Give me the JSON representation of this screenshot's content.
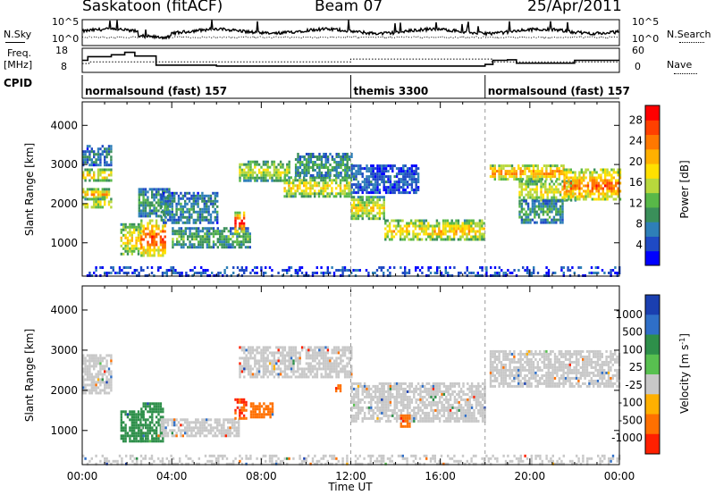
{
  "header": {
    "station": "Saskatoon (fitACF)",
    "beam": "Beam 07",
    "date": "25/Apr/2011"
  },
  "side_labels": {
    "nsky": "N.Sky",
    "nsearch": "N.Search",
    "freq_line1": "Freq.",
    "freq_line2": "[MHz]",
    "nave": "Nave",
    "cpid": "CPID"
  },
  "noise_axis": {
    "left_top": "10^5",
    "left_bottom": "10^0",
    "right_top": "10^5",
    "right_bottom": "10^0"
  },
  "freq_axis": {
    "left_top": "18",
    "left_bottom": "8",
    "right_top": "60",
    "right_bottom": "0"
  },
  "cpid_segments": [
    {
      "label": "normalsound (fast) 157",
      "start_hour": 0,
      "end_hour": 12
    },
    {
      "label": "themis 3300",
      "start_hour": 12,
      "end_hour": 18
    },
    {
      "label": "normalsound (fast) 157",
      "start_hour": 18,
      "end_hour": 24
    }
  ],
  "chart_data": [
    {
      "type": "line",
      "panel": "noise",
      "series": [
        {
          "name": "N.Sky",
          "style": "solid"
        },
        {
          "name": "N.Search",
          "style": "dotted"
        }
      ],
      "ylim_left": [
        "10^0",
        "10^5"
      ],
      "ylim_right": [
        "10^0",
        "10^5"
      ]
    },
    {
      "type": "line",
      "panel": "frequency",
      "series": [
        {
          "name": "Freq.",
          "style": "solid",
          "steps": [
            {
              "t": 0.0,
              "v": 13.0
            },
            {
              "t": 0.25,
              "v": 14.5
            },
            {
              "t": 1.3,
              "v": 15.3
            },
            {
              "t": 1.9,
              "v": 16.3
            },
            {
              "t": 2.35,
              "v": 14.8
            },
            {
              "t": 3.3,
              "v": 11.0
            },
            {
              "t": 6.0,
              "v": 10.6
            },
            {
              "t": 18.0,
              "v": 11.3
            },
            {
              "t": 18.35,
              "v": 13.0
            },
            {
              "t": 19.0,
              "v": 13.2
            },
            {
              "t": 19.4,
              "v": 11.8
            },
            {
              "t": 22.0,
              "v": 13.0
            },
            {
              "t": 24.0,
              "v": 13.0
            }
          ]
        },
        {
          "name": "Nave",
          "style": "dotted",
          "steps": [
            {
              "t": 0.0,
              "v": 22
            },
            {
              "t": 0.3,
              "v": 26
            },
            {
              "t": 12.0,
              "v": 33
            },
            {
              "t": 18.3,
              "v": 26
            },
            {
              "t": 24.0,
              "v": 26
            }
          ]
        }
      ],
      "ylim_left": [
        8,
        18
      ],
      "ylim_right": [
        0,
        60
      ]
    },
    {
      "type": "heatmap",
      "panel": "power",
      "title": "",
      "xlabel": "",
      "ylabel": "Slant Range [km]",
      "xlim": [
        0,
        24
      ],
      "ylim": [
        150,
        4600
      ],
      "yticks": [
        1000,
        2000,
        3000,
        4000
      ],
      "colorbar": {
        "label": "Power [dB]",
        "ticks": [
          "4",
          "8",
          "12",
          "16",
          "20",
          "24",
          "28"
        ],
        "colors": [
          "#0000ff",
          "#1f4ac4",
          "#2e7fb8",
          "#3a8f5a",
          "#58b848",
          "#b8d83c",
          "#ffe000",
          "#ffb000",
          "#ff7800",
          "#ff4000",
          "#ff0000"
        ]
      },
      "bands": [
        {
          "t0": 0.0,
          "t1": 1.3,
          "r0": 2600,
          "r1": 2900,
          "level": 0.58
        },
        {
          "t0": 0.0,
          "t1": 1.2,
          "r0": 2150,
          "r1": 2400,
          "level": 0.62
        },
        {
          "t0": 0.0,
          "t1": 1.3,
          "r0": 1900,
          "r1": 2150,
          "level": 0.5
        },
        {
          "t0": 0.0,
          "t1": 1.3,
          "r0": 3000,
          "r1": 3500,
          "level": 0.2
        },
        {
          "t0": 1.7,
          "t1": 2.6,
          "r0": 700,
          "r1": 1500,
          "level": 0.55
        },
        {
          "t0": 2.6,
          "t1": 3.7,
          "r0": 700,
          "r1": 1600,
          "level": 0.8
        },
        {
          "t0": 2.5,
          "t1": 3.9,
          "r0": 1700,
          "r1": 2400,
          "level": 0.3
        },
        {
          "t0": 3.5,
          "t1": 6.0,
          "r0": 1500,
          "r1": 2300,
          "level": 0.25
        },
        {
          "t0": 4.0,
          "t1": 7.5,
          "r0": 900,
          "r1": 1400,
          "level": 0.35
        },
        {
          "t0": 6.8,
          "t1": 7.2,
          "r0": 1300,
          "r1": 1800,
          "level": 0.85
        },
        {
          "t0": 7.0,
          "t1": 9.3,
          "r0": 2600,
          "r1": 3100,
          "level": 0.5
        },
        {
          "t0": 9.0,
          "t1": 12.0,
          "r0": 2200,
          "r1": 2700,
          "level": 0.55
        },
        {
          "t0": 9.5,
          "t1": 12.0,
          "r0": 2700,
          "r1": 3300,
          "level": 0.3
        },
        {
          "t0": 12.0,
          "t1": 13.5,
          "r0": 1600,
          "r1": 2200,
          "level": 0.55
        },
        {
          "t0": 13.5,
          "t1": 18.0,
          "r0": 1100,
          "r1": 1600,
          "level": 0.6
        },
        {
          "t0": 12.0,
          "t1": 15.0,
          "r0": 2300,
          "r1": 3000,
          "level": 0.15
        },
        {
          "t0": 18.2,
          "t1": 21.5,
          "r0": 2650,
          "r1": 3000,
          "level": 0.7
        },
        {
          "t0": 19.5,
          "t1": 22.0,
          "r0": 2100,
          "r1": 2600,
          "level": 0.55
        },
        {
          "t0": 21.5,
          "t1": 24.0,
          "r0": 2100,
          "r1": 2900,
          "level": 0.75
        },
        {
          "t0": 19.5,
          "t1": 21.5,
          "r0": 1500,
          "r1": 2100,
          "level": 0.3
        },
        {
          "t0": 0.0,
          "t1": 24.0,
          "r0": 150,
          "r1": 400,
          "level": 0.1
        }
      ]
    },
    {
      "type": "heatmap",
      "panel": "velocity",
      "title": "",
      "xlabel": "Time UT",
      "ylabel": "Slant Range [km]",
      "xlim": [
        0,
        24
      ],
      "ylim": [
        150,
        4600
      ],
      "xticks": [
        "00:00",
        "04:00",
        "08:00",
        "12:00",
        "16:00",
        "20:00",
        "00:00"
      ],
      "yticks": [
        1000,
        2000,
        3000,
        4000
      ],
      "colorbar": {
        "label": "Velocity [m s^-1]",
        "ticks": [
          "1000",
          "500",
          "100",
          "25",
          "-25",
          "-100",
          "-500",
          "-1000"
        ],
        "colors": [
          "#1a3fb0",
          "#2f6fc8",
          "#2e8f4a",
          "#58c050",
          "#c8c8c8",
          "#ffb000",
          "#ff7000",
          "#ff2000"
        ]
      },
      "ground_scatter_color": "#c8c8c8",
      "bands": [
        {
          "t0": 0.0,
          "t1": 1.3,
          "r0": 1900,
          "r1": 2900,
          "velocity": 0
        },
        {
          "t0": 1.7,
          "t1": 2.7,
          "r0": 700,
          "r1": 1500,
          "velocity": 150
        },
        {
          "t0": 2.6,
          "t1": 3.6,
          "r0": 700,
          "r1": 1700,
          "velocity": 200
        },
        {
          "t0": 3.5,
          "t1": 7.0,
          "r0": 850,
          "r1": 1300,
          "velocity": 0
        },
        {
          "t0": 6.8,
          "t1": 7.3,
          "r0": 1300,
          "r1": 1800,
          "velocity": -600
        },
        {
          "t0": 7.5,
          "t1": 8.5,
          "r0": 1300,
          "r1": 1700,
          "velocity": -300
        },
        {
          "t0": 11.3,
          "t1": 11.6,
          "r0": 1950,
          "r1": 2150,
          "velocity": -400
        },
        {
          "t0": 7.0,
          "t1": 12.0,
          "r0": 2300,
          "r1": 3100,
          "velocity": 0
        },
        {
          "t0": 12.0,
          "t1": 18.0,
          "r0": 1200,
          "r1": 2200,
          "velocity": 0
        },
        {
          "t0": 14.2,
          "t1": 14.6,
          "r0": 1100,
          "r1": 1400,
          "velocity": -400
        },
        {
          "t0": 18.2,
          "t1": 24.0,
          "r0": 2100,
          "r1": 3000,
          "velocity": 0
        },
        {
          "t0": 0.0,
          "t1": 24.0,
          "r0": 150,
          "r1": 400,
          "velocity": 0
        }
      ]
    }
  ]
}
